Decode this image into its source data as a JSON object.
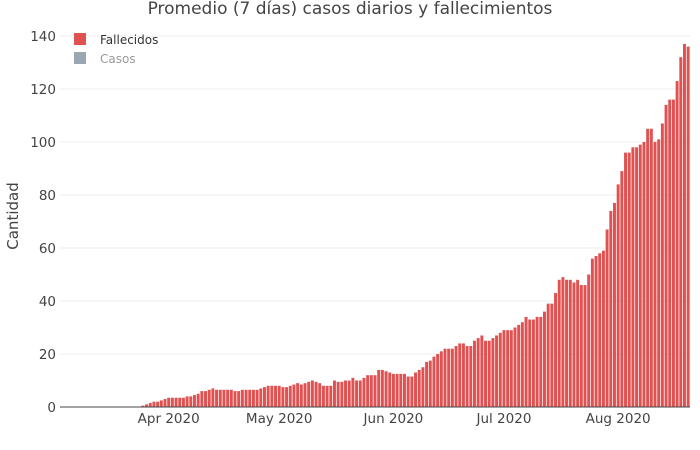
{
  "chart_data": {
    "type": "bar",
    "title": "Promedio (7 días) casos diarios y fallecimientos",
    "ylabel": "Cantidad",
    "xlabel": "",
    "ylim": [
      0,
      140
    ],
    "grid": true,
    "legend_position": "top-left",
    "y_ticks": [
      "0",
      "20",
      "40",
      "60",
      "80",
      "100",
      "120",
      "140"
    ],
    "x_ticks": [
      {
        "label": "Apr 2020",
        "date": "2020-04-01"
      },
      {
        "label": "May 2020",
        "date": "2020-05-01"
      },
      {
        "label": "Jun 2020",
        "date": "2020-06-01"
      },
      {
        "label": "Jul 2020",
        "date": "2020-07-01"
      },
      {
        "label": "Aug 2020",
        "date": "2020-08-01"
      }
    ],
    "x_start": "2020-03-03",
    "series": [
      {
        "name": "Fallecidos",
        "color": "#e05252",
        "visible": true,
        "values": [
          0,
          0,
          0,
          0,
          0,
          0,
          0,
          0,
          0,
          0,
          0,
          0,
          0,
          0,
          0,
          0,
          0,
          0,
          0,
          0,
          0,
          0,
          0.5,
          1,
          1.5,
          2,
          2,
          2.5,
          3,
          3.5,
          3.5,
          3.5,
          3.5,
          3.5,
          4,
          4,
          4.5,
          5,
          6,
          6,
          6.5,
          7,
          6.5,
          6.5,
          6.5,
          6.5,
          6.5,
          6,
          6,
          6.5,
          6.5,
          6.5,
          6.5,
          6.5,
          7,
          7.5,
          8,
          8,
          8,
          8,
          7.5,
          7.5,
          8,
          8.5,
          9,
          8.5,
          9,
          9.5,
          10,
          9.5,
          9,
          8,
          8,
          8,
          10,
          9.5,
          9.5,
          10,
          10,
          11,
          10,
          10,
          11,
          12,
          12,
          12,
          14,
          14,
          13.5,
          13,
          12.5,
          12.5,
          12.5,
          12.5,
          11.5,
          11.5,
          13,
          14,
          15,
          17,
          17.5,
          19,
          20,
          21,
          22,
          22,
          22,
          23,
          24,
          24,
          23,
          23,
          25,
          26,
          27,
          25,
          25,
          26,
          27,
          28,
          29,
          29,
          29,
          30,
          31,
          32,
          34,
          33,
          33,
          34,
          34,
          36,
          39,
          39,
          43,
          48,
          49,
          48,
          48,
          47,
          48,
          46,
          46,
          50,
          56,
          57,
          58,
          59,
          67,
          74,
          77,
          84,
          89,
          96,
          96,
          98,
          98,
          99,
          100,
          105,
          105,
          100,
          101,
          107,
          114,
          116,
          116,
          123,
          132,
          137,
          136
        ]
      },
      {
        "name": "Casos",
        "color": "#9aa6b2",
        "visible": false,
        "values": []
      }
    ]
  }
}
